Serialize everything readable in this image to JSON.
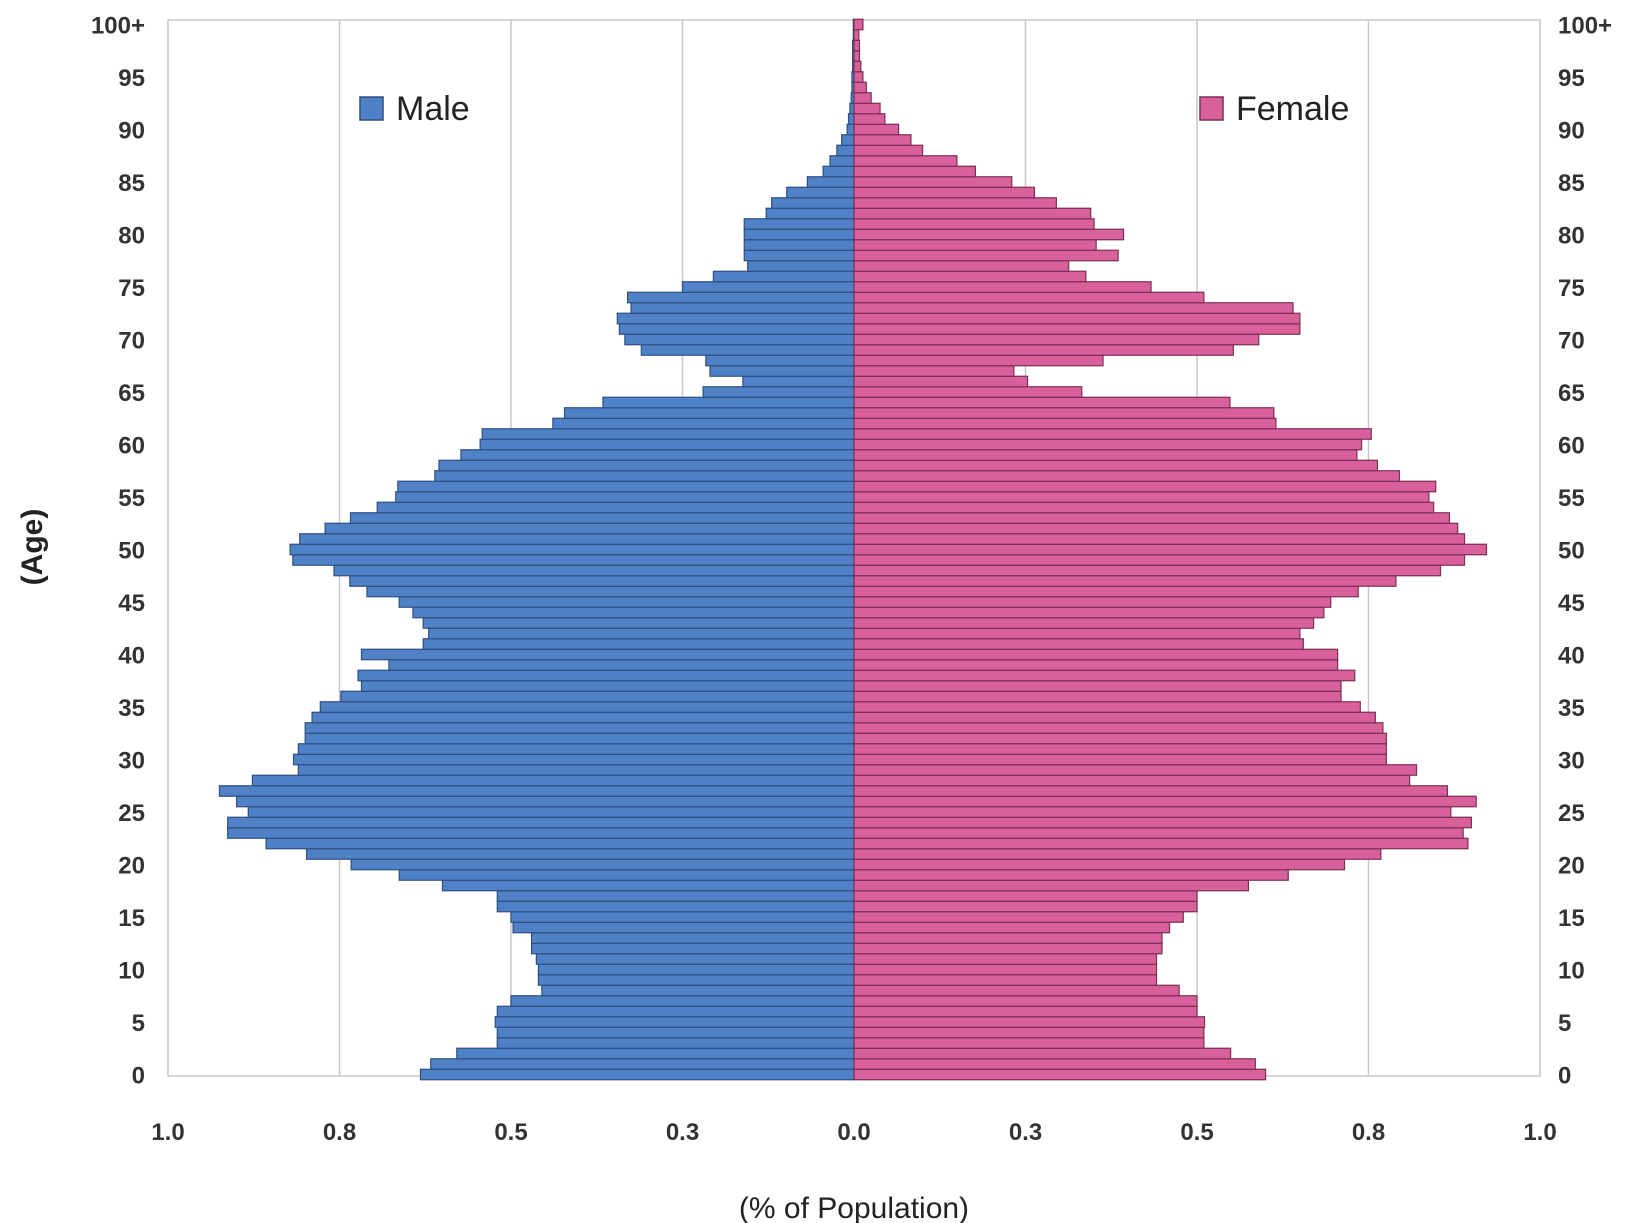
{
  "chart_data": {
    "type": "bar",
    "orientation": "horizontal",
    "xlabel": "(% of Population)",
    "ylabel": "(Age)",
    "age_tick_labels": [
      "0",
      "5",
      "10",
      "15",
      "20",
      "25",
      "30",
      "35",
      "40",
      "45",
      "50",
      "55",
      "60",
      "65",
      "70",
      "75",
      "80",
      "85",
      "90",
      "95",
      "100+"
    ],
    "x_tick_labels": [
      "1.0",
      "0.8",
      "0.5",
      "0.3",
      "0.0",
      "0.3",
      "0.5",
      "0.8",
      "1.0"
    ],
    "xlim": [
      -1.0,
      1.0
    ],
    "grid": true,
    "legend": [
      {
        "name": "Male",
        "color": "#4f81c7"
      },
      {
        "name": "Female",
        "color": "#d9619b"
      }
    ],
    "categories": [
      "0",
      "1",
      "2",
      "3",
      "4",
      "5",
      "6",
      "7",
      "8",
      "9",
      "10",
      "11",
      "12",
      "13",
      "14",
      "15",
      "16",
      "17",
      "18",
      "19",
      "20",
      "21",
      "22",
      "23",
      "24",
      "25",
      "26",
      "27",
      "28",
      "29",
      "30",
      "31",
      "32",
      "33",
      "34",
      "35",
      "36",
      "37",
      "38",
      "39",
      "40",
      "41",
      "42",
      "43",
      "44",
      "45",
      "46",
      "47",
      "48",
      "49",
      "50",
      "51",
      "52",
      "53",
      "54",
      "55",
      "56",
      "57",
      "58",
      "59",
      "60",
      "61",
      "62",
      "63",
      "64",
      "65",
      "66",
      "67",
      "68",
      "69",
      "70",
      "71",
      "72",
      "73",
      "74",
      "75",
      "76",
      "77",
      "78",
      "79",
      "80",
      "81",
      "82",
      "83",
      "84",
      "85",
      "86",
      "87",
      "88",
      "89",
      "90",
      "91",
      "92",
      "93",
      "94",
      "95",
      "96",
      "97",
      "98",
      "99",
      "100+"
    ],
    "series": [
      {
        "name": "Male",
        "color": "#4f81c7",
        "values": [
          0.632,
          0.617,
          0.579,
          0.52,
          0.52,
          0.523,
          0.52,
          0.5,
          0.455,
          0.46,
          0.46,
          0.463,
          0.47,
          0.47,
          0.497,
          0.5,
          0.52,
          0.52,
          0.6,
          0.663,
          0.733,
          0.798,
          0.857,
          0.913,
          0.913,
          0.883,
          0.9,
          0.925,
          0.877,
          0.81,
          0.817,
          0.81,
          0.8,
          0.8,
          0.79,
          0.778,
          0.748,
          0.718,
          0.723,
          0.678,
          0.718,
          0.628,
          0.62,
          0.628,
          0.643,
          0.663,
          0.71,
          0.735,
          0.758,
          0.818,
          0.822,
          0.808,
          0.771,
          0.734,
          0.695,
          0.668,
          0.665,
          0.611,
          0.605,
          0.573,
          0.545,
          0.542,
          0.439,
          0.422,
          0.366,
          0.22,
          0.162,
          0.21,
          0.216,
          0.31,
          0.334,
          0.342,
          0.345,
          0.325,
          0.33,
          0.25,
          0.205,
          0.155,
          0.16,
          0.16,
          0.16,
          0.16,
          0.128,
          0.12,
          0.098,
          0.068,
          0.045,
          0.035,
          0.025,
          0.018,
          0.01,
          0.008,
          0.006,
          0.004,
          0.003,
          0.003,
          0.002,
          0.002,
          0.002,
          0.001,
          0.001
        ]
      },
      {
        "name": "Female",
        "color": "#d9619b",
        "values": [
          0.6,
          0.585,
          0.549,
          0.51,
          0.51,
          0.511,
          0.5,
          0.5,
          0.474,
          0.441,
          0.441,
          0.441,
          0.449,
          0.449,
          0.46,
          0.48,
          0.5,
          0.5,
          0.575,
          0.633,
          0.715,
          0.768,
          0.895,
          0.888,
          0.9,
          0.87,
          0.907,
          0.865,
          0.81,
          0.82,
          0.776,
          0.776,
          0.776,
          0.771,
          0.76,
          0.738,
          0.71,
          0.71,
          0.73,
          0.705,
          0.705,
          0.655,
          0.65,
          0.67,
          0.685,
          0.695,
          0.735,
          0.79,
          0.855,
          0.89,
          0.922,
          0.89,
          0.88,
          0.868,
          0.845,
          0.838,
          0.848,
          0.795,
          0.763,
          0.733,
          0.74,
          0.754,
          0.615,
          0.612,
          0.548,
          0.332,
          0.253,
          0.233,
          0.363,
          0.553,
          0.59,
          0.65,
          0.65,
          0.64,
          0.51,
          0.433,
          0.338,
          0.313,
          0.385,
          0.353,
          0.393,
          0.35,
          0.345,
          0.295,
          0.263,
          0.23,
          0.177,
          0.15,
          0.1,
          0.083,
          0.065,
          0.045,
          0.038,
          0.025,
          0.018,
          0.013,
          0.01,
          0.008,
          0.008,
          0.007,
          0.013
        ]
      }
    ]
  }
}
